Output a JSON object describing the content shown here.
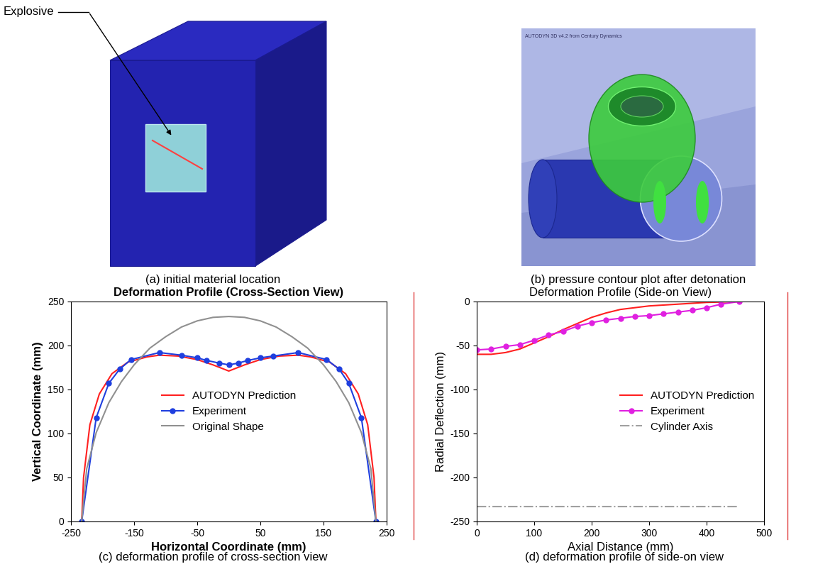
{
  "images": [
    {
      "caption": "(a) initial material location",
      "labels": [
        "Explosive"
      ]
    },
    {
      "caption": "(b) pressure contour plot after detonation",
      "labels": [
        "AUTODYN 3D v4.2 from Century Dynamics"
      ]
    }
  ],
  "chart_data": [
    {
      "type": "line",
      "title": "Deformation Profile (Cross-Section View)",
      "caption": "(c) deformation profile of cross-section view",
      "x_label": "Horizontal Coordinate (mm)",
      "y_label": "Vertical Coordinate (mm)",
      "xlim": [
        -250,
        250
      ],
      "xticks": [
        -250,
        -150,
        -50,
        50,
        150,
        250
      ],
      "ylim": [
        0,
        250
      ],
      "yticks": [
        0,
        50,
        100,
        150,
        200,
        250
      ],
      "legend": "center",
      "series": [
        {
          "name": "AUTODYN Prediction",
          "color": "#ff2020",
          "marker": "none",
          "line_style": "solid",
          "x": [
            -233,
            -230,
            -220,
            -205,
            -185,
            -160,
            -130,
            -110,
            -80,
            -50,
            -25,
            0,
            25,
            50,
            80,
            110,
            130,
            160,
            185,
            205,
            220,
            230,
            233
          ],
          "values": [
            0,
            50,
            110,
            145,
            168,
            181,
            187,
            189,
            188,
            184,
            178,
            171,
            178,
            184,
            188,
            189,
            187,
            181,
            168,
            145,
            110,
            50,
            0
          ]
        },
        {
          "name": "Experiment",
          "color": "#1f3fdf",
          "marker": "circle",
          "line_style": "solid",
          "x": [
            -233,
            -210,
            -190,
            -173,
            -155,
            -110,
            -75,
            -50,
            -35,
            -15,
            0,
            15,
            30,
            50,
            70,
            110,
            155,
            175,
            190,
            210,
            233
          ],
          "values": [
            0,
            118,
            157,
            173,
            184,
            192,
            189,
            186,
            183,
            180,
            178,
            180,
            183,
            186,
            188,
            192,
            184,
            173,
            157,
            118,
            0
          ]
        },
        {
          "name": "Original Shape",
          "color": "#909090",
          "marker": "none",
          "line_style": "solid",
          "x": [
            -233,
            -225,
            -210,
            -190,
            -170,
            -150,
            -125,
            -100,
            -75,
            -50,
            -25,
            0,
            25,
            50,
            75,
            100,
            125,
            150,
            170,
            190,
            210,
            225,
            233
          ],
          "values": [
            0,
            60,
            101,
            135,
            159,
            178,
            197,
            210,
            221,
            228,
            232,
            233,
            232,
            228,
            221,
            210,
            197,
            178,
            159,
            135,
            101,
            60,
            0
          ]
        }
      ]
    },
    {
      "type": "line",
      "title": "Deformation Profile (Side-on View)",
      "caption": "(d) deformation profile of side-on view",
      "x_label": "Axial Distance (mm)",
      "y_label": "Radial Deflection (mm)",
      "xlim": [
        0,
        500
      ],
      "xticks": [
        0,
        100,
        200,
        300,
        400,
        500
      ],
      "ylim": [
        -250,
        0
      ],
      "yticks": [
        -250,
        -200,
        -150,
        -100,
        -50,
        0
      ],
      "legend": "center right",
      "series": [
        {
          "name": "AUTODYN Prediction",
          "color": "#ff2020",
          "marker": "none",
          "line_style": "solid",
          "x": [
            0,
            25,
            50,
            75,
            100,
            125,
            150,
            175,
            200,
            225,
            250,
            300,
            350,
            400,
            457
          ],
          "values": [
            -60,
            -60,
            -58,
            -54,
            -47,
            -40,
            -32,
            -25,
            -18,
            -13,
            -9,
            -5,
            -3,
            -1,
            0
          ]
        },
        {
          "name": "Experiment",
          "color": "#e020e0",
          "marker": "circle",
          "line_style": "solid",
          "x": [
            0,
            25,
            50,
            75,
            100,
            125,
            150,
            175,
            200,
            225,
            250,
            275,
            300,
            325,
            350,
            375,
            400,
            425,
            457
          ],
          "values": [
            -55,
            -54,
            -51,
            -49,
            -44,
            -38,
            -34,
            -28,
            -24,
            -21,
            -19,
            -17,
            -16,
            -14,
            -12,
            -10,
            -7,
            -3,
            0
          ]
        },
        {
          "name": "Cylinder Axis",
          "color": "#a0a0a0",
          "marker": "none",
          "line_style": "dashdot",
          "x": [
            0,
            457
          ],
          "values": [
            -233,
            -233
          ]
        }
      ]
    }
  ]
}
